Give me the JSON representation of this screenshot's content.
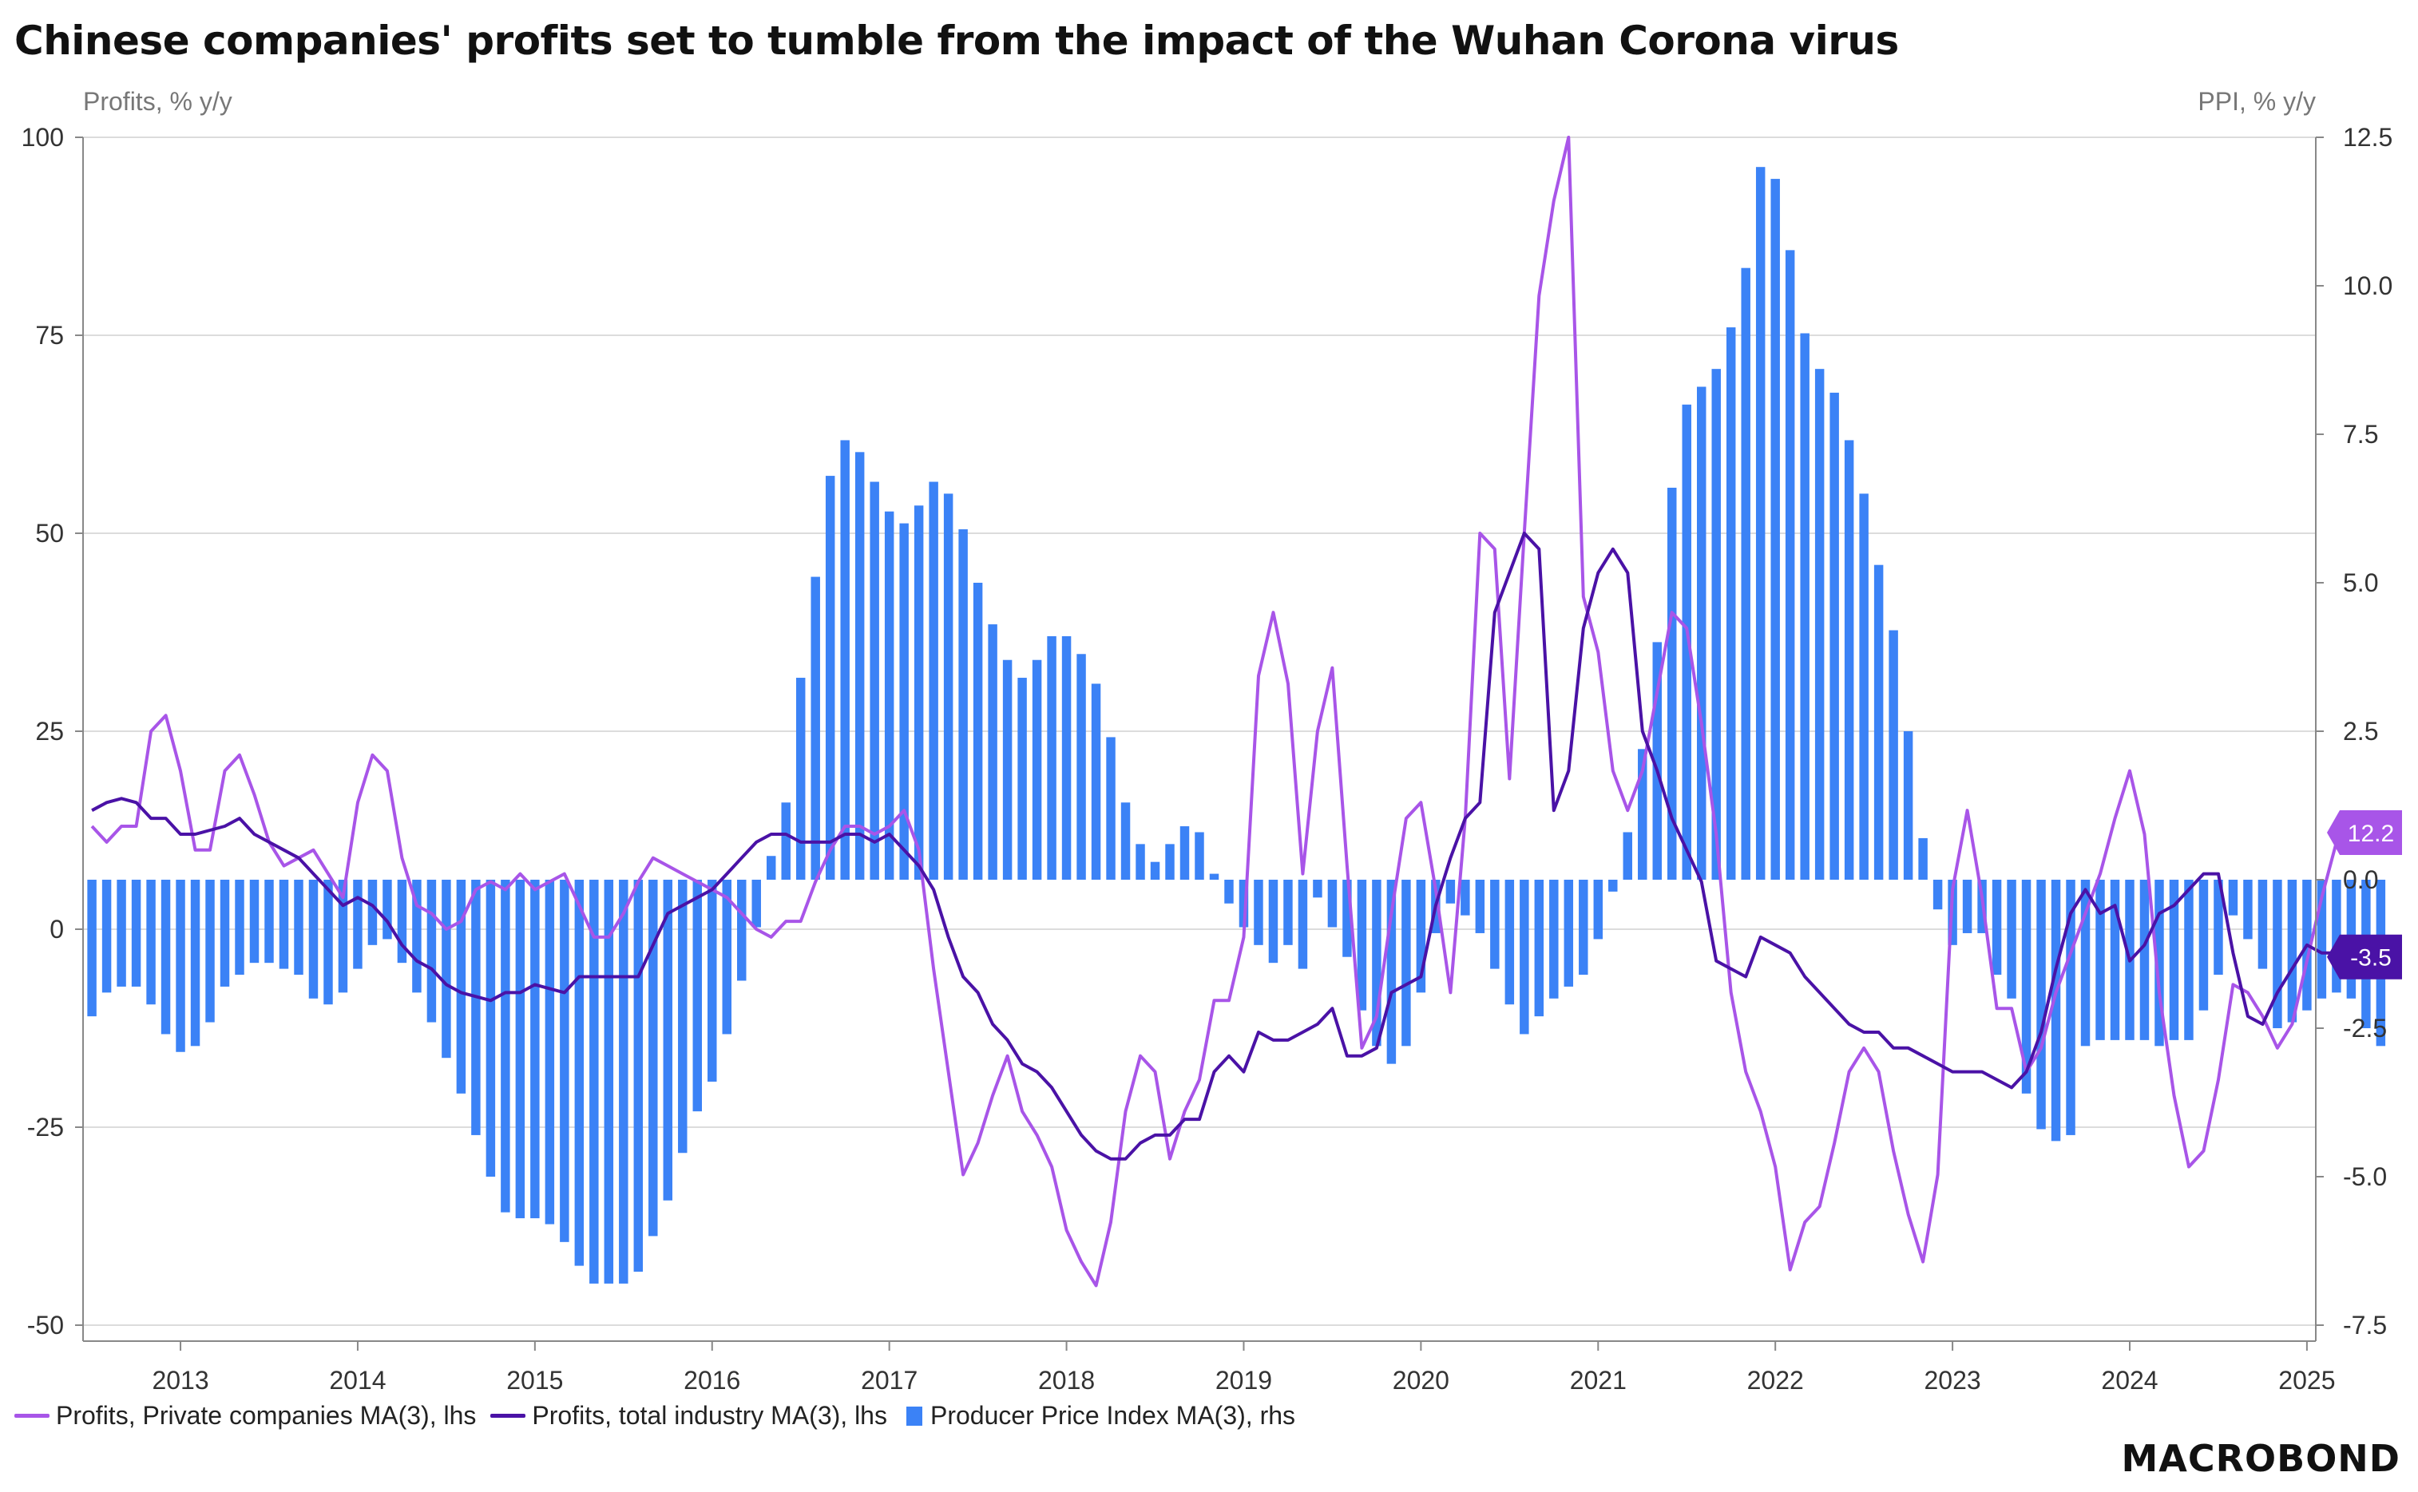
{
  "title": "Chinese companies' profits set to tumble from the impact of the Wuhan Corona virus",
  "brand": "MACROBOND",
  "legend": {
    "private": "Profits, Private companies MA(3), lhs",
    "total": "Profits, total industry MA(3), lhs",
    "ppi": "Producer Price Index MA(3), rhs"
  },
  "colors": {
    "private": "#a855e8",
    "total": "#4a12a6",
    "ppi": "#3b82f6",
    "grid": "#dcdcdc",
    "axis": "#888888"
  },
  "chart_data": {
    "type": "bar+line",
    "left_axis_title": "Profits, % y/y",
    "right_axis_title": "PPI, % y/y",
    "left_ticks": [
      "100",
      "75",
      "50",
      "25",
      "0",
      "-25",
      "-50"
    ],
    "right_ticks": [
      "12.5",
      "10.0",
      "7.5",
      "5.0",
      "2.5",
      "0.0",
      "-2.5",
      "-5.0",
      "-7.5"
    ],
    "x_ticks": [
      "2013",
      "2014",
      "2015",
      "2016",
      "2017",
      "2018",
      "2019",
      "2020",
      "2021",
      "2022",
      "2023",
      "2024",
      "2025"
    ],
    "left_ylim": [
      -50,
      100
    ],
    "right_ylim": [
      -7.5,
      12.5
    ],
    "x_range": [
      2012.45,
      2025.05
    ],
    "grid": true,
    "legend_position": "bottom",
    "end_labels": {
      "private": "12.2",
      "total": "-3.5"
    },
    "series": [
      {
        "name": "Producer Price Index MA(3), rhs",
        "axis": "right",
        "kind": "bar",
        "start": 2012.5,
        "step": 0.0833333,
        "values": [
          -2.3,
          -1.9,
          -1.8,
          -1.8,
          -2.1,
          -2.6,
          -2.9,
          -2.8,
          -2.4,
          -1.8,
          -1.6,
          -1.4,
          -1.4,
          -1.5,
          -1.6,
          -2.0,
          -2.1,
          -1.9,
          -1.5,
          -1.1,
          -1.0,
          -1.4,
          -1.9,
          -2.4,
          -3.0,
          -3.6,
          -4.3,
          -5.0,
          -5.6,
          -5.7,
          -5.7,
          -5.8,
          -6.1,
          -6.5,
          -6.8,
          -6.8,
          -6.8,
          -6.6,
          -6.0,
          -5.4,
          -4.6,
          -3.9,
          -3.4,
          -2.6,
          -1.7,
          -0.8,
          0.4,
          1.3,
          3.4,
          5.1,
          6.8,
          7.4,
          7.2,
          6.7,
          6.2,
          6.0,
          6.3,
          6.7,
          6.5,
          5.9,
          5.0,
          4.3,
          3.7,
          3.4,
          3.7,
          4.1,
          4.1,
          3.8,
          3.3,
          2.4,
          1.3,
          0.6,
          0.3,
          0.6,
          0.9,
          0.8,
          0.1,
          -0.4,
          -0.8,
          -1.1,
          -1.4,
          -1.1,
          -1.5,
          -0.3,
          -0.8,
          -1.3,
          -2.2,
          -2.8,
          -3.1,
          -2.8,
          -1.9,
          -0.9,
          -0.4,
          -0.6,
          -0.9,
          -1.5,
          -2.1,
          -2.6,
          -2.3,
          -2.0,
          -1.8,
          -1.6,
          -1.0,
          -0.2,
          0.8,
          2.2,
          4.0,
          6.6,
          8.0,
          8.3,
          8.6,
          9.3,
          10.3,
          12.0,
          11.8,
          10.6,
          9.2,
          8.6,
          8.2,
          7.4,
          6.5,
          5.3,
          4.2,
          2.5,
          0.7,
          -0.5,
          -1.1,
          -0.9,
          -0.9,
          -1.6,
          -2.0,
          -3.6,
          -4.2,
          -4.4,
          -4.3,
          -2.8,
          -2.7,
          -2.7,
          -2.7,
          -2.7,
          -2.8,
          -2.7,
          -2.7,
          -2.2,
          -1.6,
          -0.6,
          -1.0,
          -1.5,
          -2.5,
          -2.4,
          -2.2,
          -2.0,
          -1.9,
          -2.0,
          -2.5,
          -2.8
        ]
      },
      {
        "name": "Profits, Private companies MA(3), lhs",
        "axis": "left",
        "kind": "line",
        "start": 2012.5,
        "step": 0.0833333,
        "values": [
          13,
          11,
          13,
          13,
          25,
          27,
          20,
          10,
          10,
          20,
          22,
          17,
          11,
          8,
          9,
          10,
          7,
          4,
          16,
          22,
          20,
          9,
          3,
          2,
          0,
          1,
          5,
          6,
          5,
          7,
          5,
          6,
          7,
          3,
          -1,
          -1,
          2,
          6,
          9,
          8,
          7,
          6,
          5,
          4,
          2,
          0,
          -1,
          1,
          1,
          6,
          10,
          13,
          13,
          12,
          13,
          15,
          10,
          -5,
          -18,
          -31,
          -27,
          -21,
          -16,
          -23,
          -26,
          -30,
          -38,
          -42,
          -45,
          -37,
          -23,
          -16,
          -18,
          -29,
          -23,
          -19,
          -9,
          -9,
          -1,
          32,
          40,
          31,
          7,
          25,
          33,
          8,
          -15,
          -11,
          2,
          14,
          16,
          5,
          -8,
          14,
          50,
          48,
          19,
          50,
          80,
          92,
          100,
          42,
          35,
          20,
          15,
          20,
          30,
          40,
          38,
          26,
          12,
          -8,
          -18,
          -23,
          -30,
          -43,
          -37,
          -35,
          -27,
          -18,
          -15,
          -18,
          -28,
          -36,
          -42,
          -31,
          5,
          15,
          4,
          -10,
          -10,
          -18,
          -15,
          -8,
          -3,
          2,
          7,
          14,
          20,
          12,
          -8,
          -21,
          -30,
          -28,
          -19,
          -7,
          -8,
          -11,
          -15,
          -12,
          -4,
          4,
          11,
          12
        ]
      },
      {
        "name": "Profits, total industry MA(3), lhs",
        "axis": "left",
        "kind": "line",
        "start": 2012.5,
        "step": 0.0833333,
        "values": [
          15,
          16,
          16.5,
          16,
          14,
          14,
          12,
          12,
          12.5,
          13,
          14,
          12,
          11,
          10,
          9,
          7,
          5,
          3,
          4,
          3,
          1,
          -2,
          -4,
          -5,
          -7,
          -8,
          -8.5,
          -9,
          -8,
          -8,
          -7,
          -7.5,
          -8,
          -6,
          -6,
          -6,
          -6,
          -6,
          -2,
          2,
          3,
          4,
          5,
          7,
          9,
          11,
          12,
          12,
          11,
          11,
          11,
          12,
          12,
          11,
          12,
          10,
          8,
          5,
          -1,
          -6,
          -8,
          -12,
          -14,
          -17,
          -18,
          -20,
          -23,
          -26,
          -28,
          -29,
          -29,
          -27,
          -26,
          -26,
          -24,
          -24,
          -18,
          -16,
          -18,
          -13,
          -14,
          -14,
          -13,
          -12,
          -10,
          -16,
          -16,
          -15,
          -8,
          -7,
          -6,
          3,
          9,
          14,
          16,
          40,
          45,
          50,
          48,
          15,
          20,
          38,
          45,
          48,
          45,
          25,
          20,
          14,
          10,
          6,
          -4,
          -5,
          -6,
          -1,
          -2,
          -3,
          -6,
          -8,
          -10,
          -12,
          -13,
          -13,
          -15,
          -15,
          -16,
          -17,
          -18,
          -18,
          -18,
          -19,
          -20,
          -18,
          -13,
          -5,
          2,
          5,
          2,
          3,
          -4,
          -2,
          2,
          3,
          5,
          7,
          7,
          -3,
          -11,
          -12,
          -8,
          -5,
          -2,
          -3,
          -3,
          -3.5
        ]
      }
    ]
  }
}
